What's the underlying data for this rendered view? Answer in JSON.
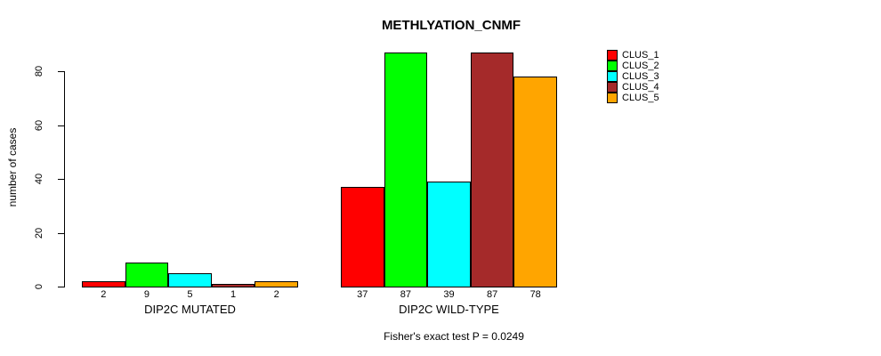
{
  "chart_data": {
    "type": "bar",
    "title": "METHLYATION_CNMF",
    "ylabel": "number of cases",
    "xlabel": "",
    "caption": "Fisher's exact test P = 0.0249",
    "categories": [
      "DIP2C MUTATED",
      "DIP2C WILD-TYPE"
    ],
    "series": [
      {
        "name": "CLUS_1",
        "color": "#FF0000",
        "values": [
          2,
          37
        ]
      },
      {
        "name": "CLUS_2",
        "color": "#00FF00",
        "values": [
          9,
          87
        ]
      },
      {
        "name": "CLUS_3",
        "color": "#00FFFF",
        "values": [
          5,
          39
        ]
      },
      {
        "name": "CLUS_4",
        "color": "#A52A2A",
        "values": [
          1,
          87
        ]
      },
      {
        "name": "CLUS_5",
        "color": "#FFA500",
        "values": [
          2,
          78
        ]
      }
    ],
    "yticks": [
      0,
      20,
      40,
      60,
      80
    ],
    "ylim": [
      0,
      87
    ],
    "grid": false,
    "legend_position": "right",
    "bar_value_labels": true,
    "axis_color": "#000000",
    "background_color": "#FFFFFF"
  }
}
